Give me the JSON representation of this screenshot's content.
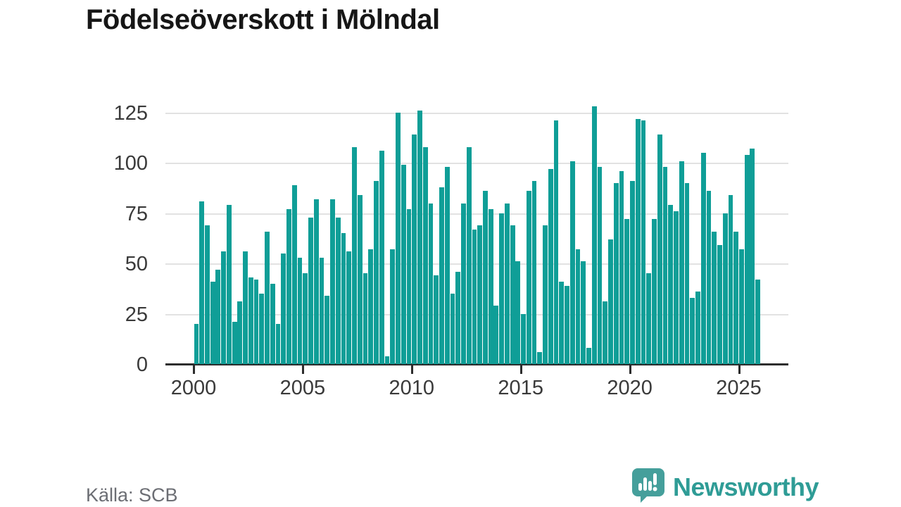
{
  "title": "Födelseöverskott i Mölndal",
  "source": "Källa: SCB",
  "branding": {
    "name": "Newsworthy",
    "icon": "newsworthy-speech-bubble-chart-icon",
    "bubble_color": "#459f9b",
    "text_color": "#2f9c96"
  },
  "chart_data": {
    "type": "bar",
    "title": "Födelseöverskott i Mölndal",
    "xlabel": "",
    "ylabel": "",
    "x_unit": "quarter",
    "x_range": "2000 Q1 – 2025 Q4",
    "ylim": [
      0,
      125
    ],
    "yticks": [
      0,
      25,
      50,
      75,
      100,
      125
    ],
    "xticks": [
      2000,
      2005,
      2010,
      2015,
      2020,
      2025
    ],
    "grid": true,
    "legend": "none",
    "bar_color": "#0f9e97",
    "series": [
      {
        "year": 2000,
        "values": [
          20,
          81,
          69,
          41
        ]
      },
      {
        "year": 2001,
        "values": [
          47,
          56,
          79,
          21
        ]
      },
      {
        "year": 2002,
        "values": [
          31,
          56,
          43,
          42
        ]
      },
      {
        "year": 2003,
        "values": [
          35,
          66,
          40,
          20
        ]
      },
      {
        "year": 2004,
        "values": [
          55,
          77,
          89,
          53
        ]
      },
      {
        "year": 2005,
        "values": [
          45,
          73,
          82,
          53
        ]
      },
      {
        "year": 2006,
        "values": [
          34,
          82,
          73,
          65
        ]
      },
      {
        "year": 2007,
        "values": [
          56,
          108,
          84,
          45
        ]
      },
      {
        "year": 2008,
        "values": [
          57,
          91,
          106,
          4
        ]
      },
      {
        "year": 2009,
        "values": [
          57,
          125,
          99,
          77
        ]
      },
      {
        "year": 2010,
        "values": [
          114,
          126,
          108,
          80
        ]
      },
      {
        "year": 2011,
        "values": [
          44,
          88,
          98,
          35
        ]
      },
      {
        "year": 2012,
        "values": [
          46,
          80,
          108,
          67
        ]
      },
      {
        "year": 2013,
        "values": [
          69,
          86,
          77,
          29
        ]
      },
      {
        "year": 2014,
        "values": [
          75,
          80,
          69,
          51
        ]
      },
      {
        "year": 2015,
        "values": [
          25,
          86,
          91,
          6
        ]
      },
      {
        "year": 2016,
        "values": [
          69,
          97,
          121,
          41
        ]
      },
      {
        "year": 2017,
        "values": [
          39,
          101,
          57,
          51
        ]
      },
      {
        "year": 2018,
        "values": [
          8,
          128,
          98,
          31
        ]
      },
      {
        "year": 2019,
        "values": [
          62,
          90,
          96,
          72
        ]
      },
      {
        "year": 2020,
        "values": [
          91,
          122,
          121,
          45
        ]
      },
      {
        "year": 2021,
        "values": [
          72,
          114,
          98,
          79
        ]
      },
      {
        "year": 2022,
        "values": [
          76,
          101,
          90,
          33
        ]
      },
      {
        "year": 2023,
        "values": [
          36,
          105,
          86,
          66
        ]
      },
      {
        "year": 2024,
        "values": [
          59,
          75,
          84,
          66
        ]
      },
      {
        "year": 2025,
        "values": [
          57,
          104,
          107,
          42
        ]
      }
    ]
  }
}
